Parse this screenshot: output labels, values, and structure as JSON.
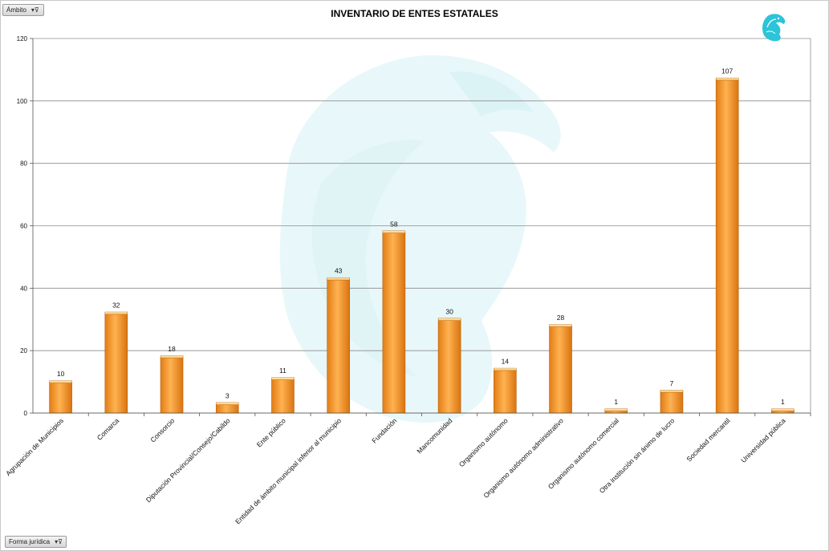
{
  "filters": {
    "top_field": "Ámbito",
    "bottom_field": "Forma jurídica"
  },
  "icons": {
    "filter_button": "filter-dropdown-icon",
    "logo": "eagle-emblem-icon",
    "watermark": "eagle-watermark-icon"
  },
  "colors": {
    "bar_light": "#ffb251",
    "bar_dark": "#e27d14",
    "bar_edge": "#b8600c",
    "watermark": "#e3f6f8",
    "logo": "#2cc4d8",
    "gridline": "#8c8c8c"
  },
  "chart_data": {
    "type": "bar",
    "title": "INVENTARIO DE ENTES ESTATALES",
    "xlabel": "",
    "ylabel": "",
    "ylim": [
      0,
      120
    ],
    "yticks": [
      0,
      20,
      40,
      60,
      80,
      100,
      120
    ],
    "grid": true,
    "categories": [
      "Agrupación de Municipios",
      "Comarca",
      "Consorcio",
      "Diputación Provincial/Consejo/Cabildo",
      "Ente público",
      "Entidad de ámbito municipal inferior al municipio",
      "Fundación",
      "Mancomunidad",
      "Organismo autónomo",
      "Organismo autónomo administrativo",
      "Organismo autónomo comercial",
      "Otra institución sin ánimo de lucro",
      "Sociedad mercantil",
      "Universidad pública"
    ],
    "values": [
      10,
      32,
      18,
      3,
      11,
      43,
      58,
      30,
      14,
      28,
      1,
      7,
      107,
      1
    ]
  }
}
